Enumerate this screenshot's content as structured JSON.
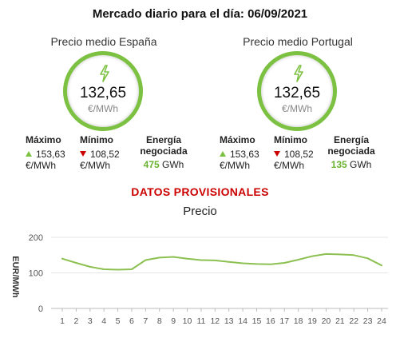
{
  "header": {
    "title": "Mercado diario para el día: 06/09/2021"
  },
  "spain": {
    "title": "Precio medio España",
    "price": "132,65",
    "unit": "€/MWh",
    "max_label": "Máximo",
    "max_value": "153,63",
    "max_unit": "€/MWh",
    "min_label": "Mínimo",
    "min_value": "108,52",
    "min_unit": "€/MWh",
    "energy_label_1": "Energía",
    "energy_label_2": "negociada",
    "energy_value": "475",
    "energy_unit": "GWh"
  },
  "portugal": {
    "title": "Precio medio Portugal",
    "price": "132,65",
    "unit": "€/MWh",
    "max_label": "Máximo",
    "max_value": "153,63",
    "max_unit": "€/MWh",
    "min_label": "Mínimo",
    "min_value": "108,52",
    "min_unit": "€/MWh",
    "energy_label_1": "Energía",
    "energy_label_2": "negociada",
    "energy_value": "135",
    "energy_unit": "GWh"
  },
  "provisional_text": "DATOS PROVISIONALES",
  "colors": {
    "accent": "#7cc142",
    "down": "#cc0000",
    "line": "#8cc152"
  },
  "icons": {
    "price": "lightning-bolt-icon",
    "max": "triangle-up-icon",
    "min": "triangle-down-icon"
  },
  "chart_data": {
    "type": "line",
    "title": "Precio",
    "ylabel": "EUR/MWh",
    "xlabel": "",
    "ylim": [
      0,
      200
    ],
    "yticks": [
      0,
      100,
      200
    ],
    "grid": true,
    "x": [
      1,
      2,
      3,
      4,
      5,
      6,
      7,
      8,
      9,
      10,
      11,
      12,
      13,
      14,
      15,
      16,
      17,
      18,
      19,
      20,
      21,
      22,
      23,
      24
    ],
    "values": [
      140,
      128,
      117,
      110,
      109,
      110,
      136,
      143,
      145,
      140,
      136,
      135,
      131,
      127,
      125,
      124,
      128,
      137,
      147,
      153,
      152,
      150,
      141,
      121
    ]
  }
}
